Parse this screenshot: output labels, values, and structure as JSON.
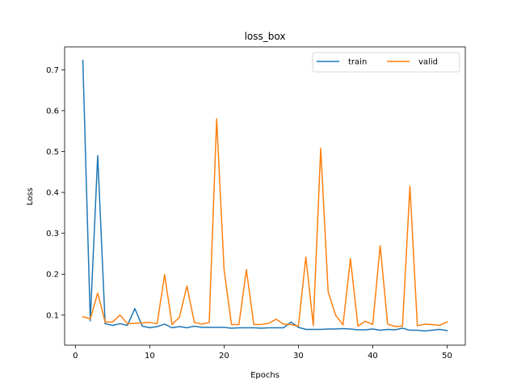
{
  "chart_data": {
    "type": "line",
    "title": "loss_box",
    "xlabel": "Epochs",
    "ylabel": "Loss",
    "xlim": [
      -1.45,
      52.45
    ],
    "ylim": [
      0.0265,
      0.756
    ],
    "xticks": [
      0,
      10,
      20,
      30,
      40,
      50
    ],
    "yticks": [
      0.1,
      0.2,
      0.3,
      0.4,
      0.5,
      0.6,
      0.7
    ],
    "grid": false,
    "legend": {
      "placement": "top-right",
      "columns": 2
    },
    "x": [
      1,
      2,
      3,
      4,
      5,
      6,
      7,
      8,
      9,
      10,
      11,
      12,
      13,
      14,
      15,
      16,
      17,
      18,
      19,
      20,
      21,
      22,
      23,
      24,
      25,
      26,
      27,
      28,
      29,
      30,
      31,
      32,
      33,
      34,
      35,
      36,
      37,
      38,
      39,
      40,
      41,
      42,
      43,
      44,
      45,
      46,
      47,
      48,
      49,
      50
    ],
    "series": [
      {
        "name": "train",
        "color": "#1f77b4",
        "values": [
          0.723,
          0.086,
          0.49,
          0.079,
          0.075,
          0.079,
          0.075,
          0.116,
          0.073,
          0.069,
          0.072,
          0.078,
          0.069,
          0.072,
          0.069,
          0.073,
          0.07,
          0.07,
          0.07,
          0.07,
          0.068,
          0.069,
          0.069,
          0.069,
          0.068,
          0.069,
          0.069,
          0.069,
          0.083,
          0.07,
          0.065,
          0.065,
          0.065,
          0.066,
          0.066,
          0.067,
          0.066,
          0.064,
          0.064,
          0.066,
          0.063,
          0.065,
          0.064,
          0.068,
          0.063,
          0.063,
          0.061,
          0.063,
          0.065,
          0.062
        ]
      },
      {
        "name": "valid",
        "color": "#ff7f0e",
        "values": [
          0.096,
          0.091,
          0.154,
          0.083,
          0.083,
          0.1,
          0.079,
          0.08,
          0.081,
          0.082,
          0.079,
          0.199,
          0.077,
          0.095,
          0.171,
          0.082,
          0.078,
          0.082,
          0.58,
          0.211,
          0.077,
          0.077,
          0.211,
          0.077,
          0.077,
          0.08,
          0.09,
          0.078,
          0.077,
          0.073,
          0.242,
          0.075,
          0.508,
          0.157,
          0.1,
          0.076,
          0.238,
          0.073,
          0.085,
          0.077,
          0.27,
          0.078,
          0.072,
          0.073,
          0.415,
          0.074,
          0.078,
          0.077,
          0.075,
          0.083
        ]
      }
    ]
  }
}
